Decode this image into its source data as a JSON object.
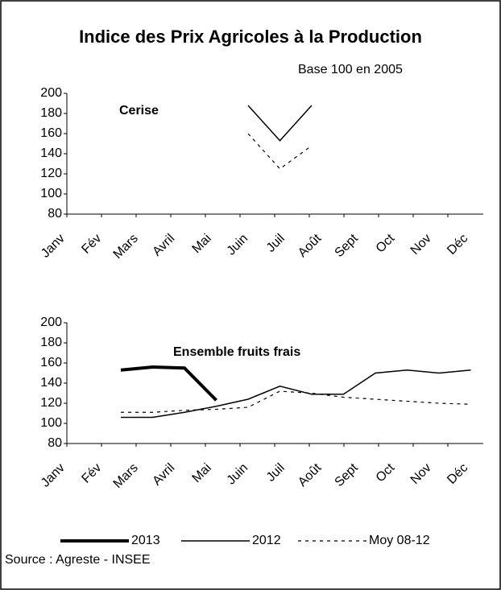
{
  "title": "Indice des Prix Agricoles à la Production",
  "subtitle": "Base 100 en 2005",
  "source": "Source : Agreste - INSEE",
  "chart_data": [
    {
      "type": "line",
      "title": "Cerise",
      "categories": [
        "Janv",
        "Fév",
        "Mars",
        "Avril",
        "Mai",
        "Juin",
        "Juil",
        "Août",
        "Sept",
        "Oct",
        "Nov",
        "Déc"
      ],
      "series": [
        {
          "name": "2012",
          "color": "#000000",
          "width": 1.5,
          "dashed": false,
          "values": [
            null,
            null,
            null,
            null,
            188,
            153,
            188,
            null,
            null,
            null,
            null,
            null
          ]
        },
        {
          "name": "Moy 08-12",
          "color": "#000000",
          "width": 1.2,
          "dashed": true,
          "values": [
            null,
            null,
            null,
            null,
            160,
            125,
            148,
            null,
            null,
            null,
            null,
            null
          ]
        }
      ],
      "ylim": [
        80,
        200
      ],
      "yticks": [
        80,
        100,
        120,
        140,
        160,
        180,
        200
      ]
    },
    {
      "type": "line",
      "title": "Ensemble fruits frais",
      "categories": [
        "Janv",
        "Fév",
        "Mars",
        "Avril",
        "Mai",
        "Juin",
        "Juil",
        "Août",
        "Sept",
        "Oct",
        "Nov",
        "Déc"
      ],
      "series": [
        {
          "name": "2013",
          "color": "#000000",
          "width": 4,
          "dashed": false,
          "values": [
            153,
            156,
            155,
            123,
            null,
            null,
            null,
            null,
            null,
            null,
            null,
            null
          ]
        },
        {
          "name": "2012",
          "color": "#000000",
          "width": 1.5,
          "dashed": false,
          "values": [
            106,
            106,
            111,
            117,
            124,
            137,
            129,
            129,
            150,
            153,
            150,
            153
          ]
        },
        {
          "name": "Moy 08-12",
          "color": "#000000",
          "width": 1.2,
          "dashed": true,
          "values": [
            111,
            111,
            113,
            114,
            116,
            132,
            130,
            126,
            124,
            122,
            120,
            119
          ]
        }
      ],
      "ylim": [
        80,
        200
      ],
      "yticks": [
        80,
        100,
        120,
        140,
        160,
        180,
        200
      ],
      "legend": "bottom"
    }
  ]
}
